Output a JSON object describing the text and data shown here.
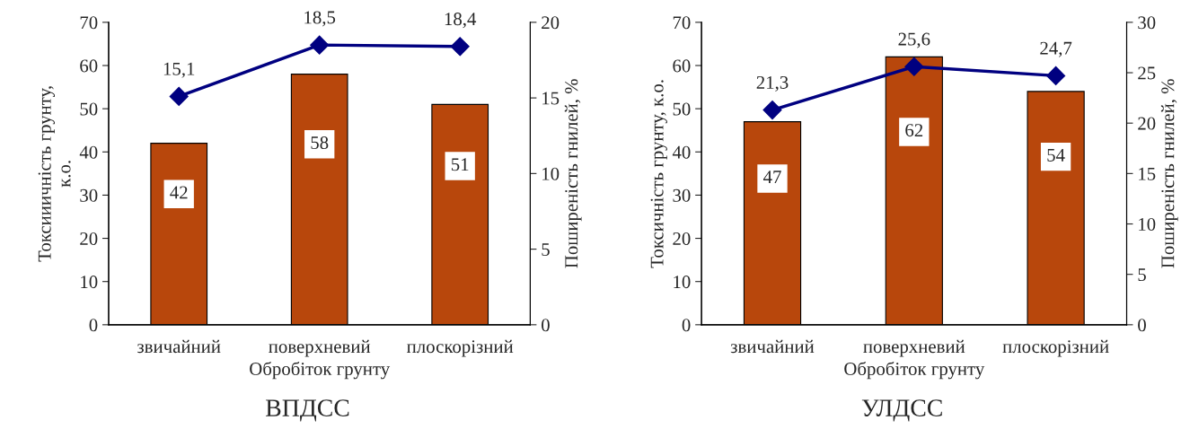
{
  "chart_data": [
    {
      "type": "bar",
      "title": "ВПДСС",
      "xlabel": "Обробіток грунту",
      "ylabel": "Токсииичність грунту,\nк.о.",
      "y2label": "Поширеність гнилей, %",
      "categories": [
        "звичайний",
        "поверхневий",
        "плоскорізний"
      ],
      "series": [
        {
          "color": "#b8470c",
          "values": [
            42,
            58,
            51
          ]
        },
        {
          "type": "line",
          "axis": "y2",
          "color": "#000080",
          "values": [
            15.1,
            18.5,
            18.4
          ],
          "value_labels": [
            "15,1",
            "18,5",
            "18,4"
          ]
        }
      ],
      "ylim": [
        0,
        70
      ],
      "yticks": [
        0,
        10,
        20,
        30,
        40,
        50,
        60,
        70
      ],
      "y2lim": [
        0,
        20
      ],
      "y2ticks": [
        0,
        5,
        10,
        15,
        20
      ],
      "data_labels": true,
      "marker": "diamond",
      "grid": false,
      "legend": false
    },
    {
      "type": "bar",
      "title": "УЛДСС",
      "xlabel": "Обробіток грунту",
      "ylabel": "Токсичність грунту, к.о.",
      "y2label": "Поширеність гнилей, %",
      "categories": [
        "звичайний",
        "поверхневий",
        "плоскорізний"
      ],
      "series": [
        {
          "color": "#b8470c",
          "values": [
            47,
            62,
            54
          ]
        },
        {
          "type": "line",
          "axis": "y2",
          "color": "#000080",
          "values": [
            21.3,
            25.6,
            24.7
          ],
          "value_labels": [
            "21,3",
            "25,6",
            "24,7"
          ]
        }
      ],
      "ylim": [
        0,
        70
      ],
      "yticks": [
        0,
        10,
        20,
        30,
        40,
        50,
        60,
        70
      ],
      "y2lim": [
        0,
        30
      ],
      "y2ticks": [
        0,
        5,
        10,
        15,
        20,
        25,
        30
      ],
      "data_labels": true,
      "marker": "diamond",
      "grid": false,
      "legend": false
    }
  ]
}
